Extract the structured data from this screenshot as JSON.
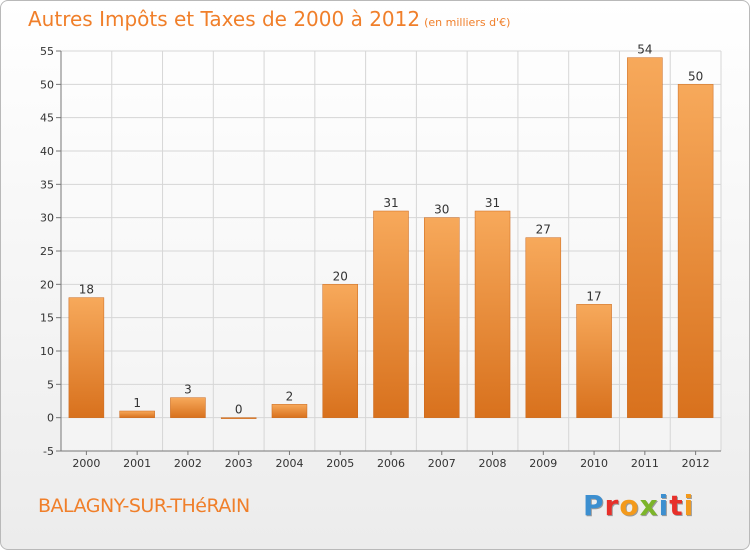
{
  "header": {
    "title": "Autres Impôts et Taxes de 2000 à 2012",
    "unit": "(en milliers d'€)"
  },
  "footer": {
    "commune": "BALAGNY-SUR-THéRAIN",
    "logo_letters": [
      "P",
      "r",
      "o",
      "x",
      "i",
      "t",
      "i"
    ],
    "logo_colors": [
      "#3c8fd0",
      "#e7302a",
      "#f39a1c",
      "#7cb52a",
      "#3c8fd0",
      "#e7302a",
      "#f39a1c"
    ]
  },
  "colors": {
    "bar_light": "#f7a95b",
    "bar_dark": "#d8711d",
    "title": "#f07f2a",
    "grid": "#d6d6d6"
  },
  "chart_data": {
    "type": "bar",
    "categories": [
      "2000",
      "2001",
      "2002",
      "2003",
      "2004",
      "2005",
      "2006",
      "2007",
      "2008",
      "2009",
      "2010",
      "2011",
      "2012"
    ],
    "values": [
      18,
      1,
      3,
      0,
      2,
      20,
      31,
      30,
      31,
      27,
      17,
      54,
      50
    ],
    "ylim": [
      -5,
      55
    ],
    "yticks": [
      -5,
      0,
      5,
      10,
      15,
      20,
      25,
      30,
      35,
      40,
      45,
      50,
      55
    ],
    "grid": true,
    "data_labels": true
  }
}
